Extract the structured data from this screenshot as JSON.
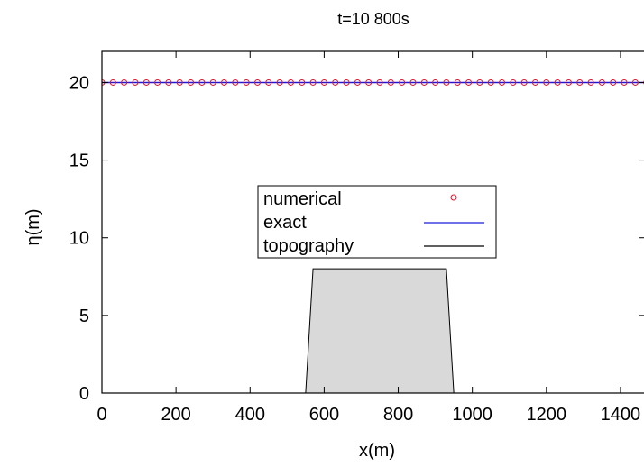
{
  "chart_data": {
    "type": "line",
    "title": "t=10 800s",
    "xlabel": "x(m)",
    "ylabel": "η(m)",
    "xlim": [
      0,
      1500
    ],
    "ylim": [
      0,
      22
    ],
    "xticks": [
      0,
      200,
      400,
      600,
      800,
      1000,
      1200,
      1400
    ],
    "yticks": [
      0,
      5,
      10,
      15,
      20
    ],
    "grid": false,
    "legend_position": "center",
    "series": [
      {
        "name": "numerical",
        "style": "markers",
        "marker": "open-circle",
        "color": "#e0102a",
        "x": [
          0,
          30,
          60,
          90,
          120,
          150,
          180,
          210,
          240,
          270,
          300,
          330,
          360,
          390,
          420,
          450,
          480,
          510,
          540,
          570,
          600,
          630,
          660,
          690,
          720,
          750,
          780,
          810,
          840,
          870,
          900,
          930,
          960,
          990,
          1020,
          1050,
          1080,
          1110,
          1140,
          1170,
          1200,
          1230,
          1260,
          1290,
          1320,
          1350,
          1380,
          1410,
          1440,
          1470,
          1500
        ],
        "y": [
          20,
          20,
          20,
          20,
          20,
          20,
          20,
          20,
          20,
          20,
          20,
          20,
          20,
          20,
          20,
          20,
          20,
          20,
          20,
          20,
          20,
          20,
          20,
          20,
          20,
          20,
          20,
          20,
          20,
          20,
          20,
          20,
          20,
          20,
          20,
          20,
          20,
          20,
          20,
          20,
          20,
          20,
          20,
          20,
          20,
          20,
          20,
          20,
          20,
          20,
          20
        ]
      },
      {
        "name": "exact",
        "style": "line",
        "color": "#1a1adc",
        "x": [
          0,
          1500
        ],
        "y": [
          20,
          20
        ]
      },
      {
        "name": "topography",
        "style": "line-filled",
        "color": "#000000",
        "fill": "#d9d9d9",
        "x": [
          0,
          550,
          570,
          930,
          950,
          1500
        ],
        "y": [
          0,
          0,
          8,
          8,
          0,
          0
        ]
      }
    ]
  }
}
